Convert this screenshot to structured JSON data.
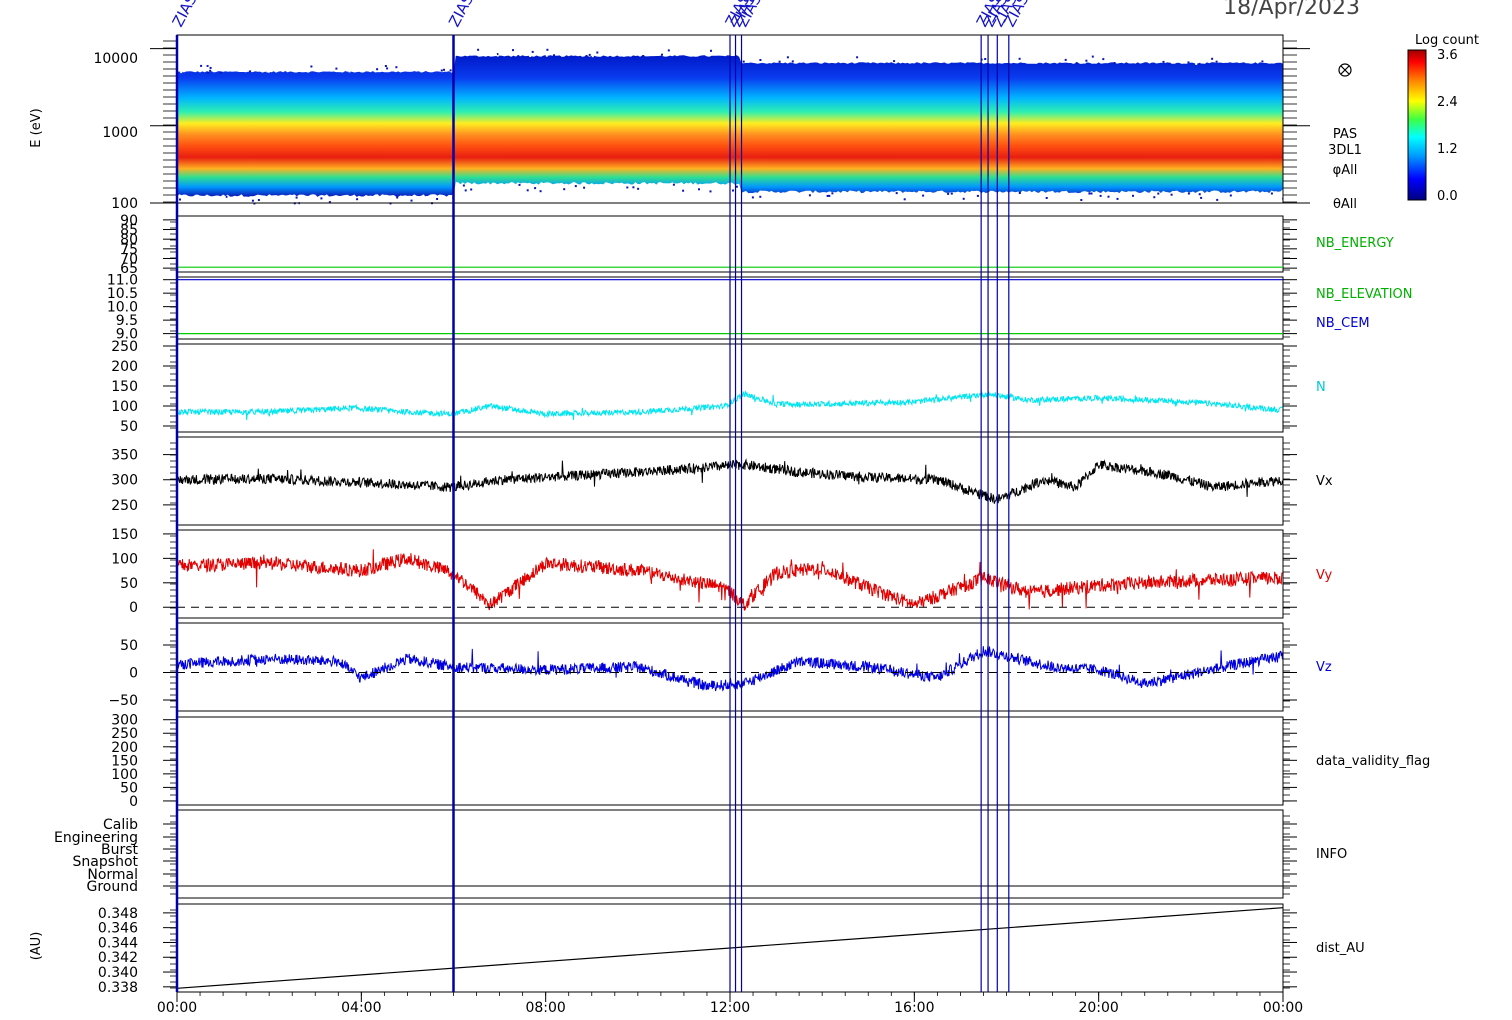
{
  "date_label": "18/Apr/2023",
  "x_axis": {
    "ticks": [
      "00:00",
      "04:00",
      "08:00",
      "12:00",
      "16:00",
      "20:00",
      "00:00"
    ],
    "range_hours": [
      0,
      24
    ]
  },
  "colorbar": {
    "title": "Log count",
    "tick_labels": [
      "3.6",
      "2.4",
      "1.2",
      "0.0"
    ],
    "range": [
      0.0,
      3.6
    ]
  },
  "events": {
    "label": "ZIAS",
    "times_hours": [
      0.0,
      6.0,
      12.0,
      12.12,
      12.25,
      17.45,
      17.6,
      17.8,
      18.05
    ]
  },
  "panels": {
    "spectrogram": {
      "ylabel": "E (eV)",
      "tick_labels": [
        "10000",
        "1000",
        "100"
      ],
      "side_labels": [
        "PAS",
        "3DL1",
        "φAll",
        "θAll"
      ]
    },
    "nb_energy": {
      "ticks": [
        "90",
        "85",
        "80",
        "75",
        "70",
        "65"
      ],
      "series": "NB_ENERGY"
    },
    "nb_elev": {
      "ticks": [
        "11.0",
        "10.5",
        "10.0",
        "9.5",
        "9.0"
      ],
      "series": [
        "NB_ELEVATION",
        "NB_CEM"
      ]
    },
    "n": {
      "ticks": [
        "250",
        "200",
        "150",
        "100",
        "50"
      ],
      "series": "N"
    },
    "vx": {
      "ticks": [
        "350",
        "300",
        "250"
      ],
      "series": "Vx"
    },
    "vy": {
      "ticks": [
        "150",
        "100",
        "50",
        "0"
      ],
      "series": "Vy"
    },
    "vz": {
      "ticks": [
        "50",
        "0",
        "−50"
      ],
      "series": "Vz"
    },
    "validity": {
      "ticks": [
        "300",
        "250",
        "200",
        "150",
        "100",
        "50",
        "0"
      ],
      "series": "data_validity_flag"
    },
    "info": {
      "ticks": [
        "Calib",
        "Engineering",
        "Burst",
        "Snapshot",
        "Normal",
        "Ground"
      ],
      "series": "INFO"
    },
    "dist": {
      "ylabel": "(AU)",
      "ticks": [
        "0.348",
        "0.346",
        "0.344",
        "0.342",
        "0.340",
        "0.338"
      ],
      "series": "dist_AU"
    }
  },
  "colors": {
    "nb_energy": "#00cc00",
    "nb_elevation": "#00cc00",
    "nb_cem": "#0000cc",
    "n": "#00e5f0",
    "vx": "#000000",
    "vy": "#e00000",
    "vz": "#0000dd",
    "events": "#0000aa"
  },
  "chart_data": {
    "type": "line",
    "x_unit": "hours since 00:00 on 18/Apr/2023",
    "spectrogram": {
      "type": "heatmap",
      "y_scale": "log",
      "ylim": [
        100,
        15000
      ],
      "band_top_eV": [
        [
          0,
          5000
        ],
        [
          6,
          8000
        ],
        [
          12.25,
          6500
        ],
        [
          24,
          6500
        ]
      ],
      "band_bottom_eV": [
        [
          0,
          125
        ],
        [
          6,
          180
        ],
        [
          12.25,
          140
        ],
        [
          24,
          150
        ]
      ],
      "peak_eV": 550
    },
    "series": [
      {
        "name": "NB_ENERGY",
        "ylim": [
          63,
          92
        ],
        "values": [
          [
            0,
            65.5
          ],
          [
            24,
            65.5
          ]
        ]
      },
      {
        "name": "NB_ELEVATION",
        "ylim": [
          8.8,
          11.1
        ],
        "values": [
          [
            0,
            9.0
          ],
          [
            24,
            9.0
          ]
        ]
      },
      {
        "name": "NB_CEM",
        "ylim": [
          8.8,
          11.1
        ],
        "values": [
          [
            0,
            11.0
          ],
          [
            24,
            11.0
          ]
        ]
      },
      {
        "name": "N",
        "ylim": [
          35,
          255
        ],
        "values": [
          [
            0,
            85
          ],
          [
            2,
            85
          ],
          [
            3.8,
            95
          ],
          [
            5,
            85
          ],
          [
            6,
            80
          ],
          [
            6.8,
            100
          ],
          [
            8,
            80
          ],
          [
            10,
            85
          ],
          [
            11.9,
            100
          ],
          [
            12.3,
            130
          ],
          [
            13,
            105
          ],
          [
            14,
            105
          ],
          [
            16,
            110
          ],
          [
            17.6,
            130
          ],
          [
            18.5,
            115
          ],
          [
            20,
            120
          ],
          [
            22,
            110
          ],
          [
            24,
            90
          ]
        ]
      },
      {
        "name": "Vx",
        "ylim": [
          210,
          385
        ],
        "values": [
          [
            0,
            300
          ],
          [
            2,
            302
          ],
          [
            4,
            295
          ],
          [
            6,
            285
          ],
          [
            7,
            300
          ],
          [
            9,
            310
          ],
          [
            10.5,
            318
          ],
          [
            12,
            328
          ],
          [
            12.3,
            330
          ],
          [
            13.5,
            315
          ],
          [
            15,
            305
          ],
          [
            16.5,
            300
          ],
          [
            17.8,
            260
          ],
          [
            18.8,
            300
          ],
          [
            19.5,
            285
          ],
          [
            20,
            330
          ],
          [
            21.5,
            310
          ],
          [
            22.5,
            285
          ],
          [
            24,
            300
          ]
        ]
      },
      {
        "name": "Vy",
        "ylim": [
          -22,
          158
        ],
        "values": [
          [
            0,
            85
          ],
          [
            2,
            90
          ],
          [
            4,
            75
          ],
          [
            5,
            100
          ],
          [
            6,
            70
          ],
          [
            6.8,
            5
          ],
          [
            8,
            90
          ],
          [
            10,
            75
          ],
          [
            11.9,
            40
          ],
          [
            12.3,
            5
          ],
          [
            13,
            70
          ],
          [
            14,
            80
          ],
          [
            15,
            40
          ],
          [
            16,
            5
          ],
          [
            17.5,
            60
          ],
          [
            18.5,
            30
          ],
          [
            20,
            45
          ],
          [
            22,
            55
          ],
          [
            24,
            60
          ]
        ]
      },
      {
        "name": "Vz",
        "ylim": [
          -70,
          90
        ],
        "values": [
          [
            0,
            15
          ],
          [
            2,
            25
          ],
          [
            3.5,
            20
          ],
          [
            4,
            -10
          ],
          [
            5,
            25
          ],
          [
            6,
            10
          ],
          [
            8,
            5
          ],
          [
            10,
            10
          ],
          [
            11.5,
            -25
          ],
          [
            12.3,
            -20
          ],
          [
            13.5,
            20
          ],
          [
            15,
            10
          ],
          [
            16.5,
            -10
          ],
          [
            17.5,
            40
          ],
          [
            19,
            10
          ],
          [
            20,
            5
          ],
          [
            21,
            -20
          ],
          [
            23,
            15
          ],
          [
            24,
            30
          ]
        ]
      },
      {
        "name": "data_validity_flag",
        "ylim": [
          -15,
          310
        ],
        "values": []
      },
      {
        "name": "dist_AU",
        "ylim": [
          0.3373,
          0.3492
        ],
        "values": [
          [
            0,
            0.3378
          ],
          [
            24,
            0.3487
          ]
        ]
      }
    ]
  }
}
